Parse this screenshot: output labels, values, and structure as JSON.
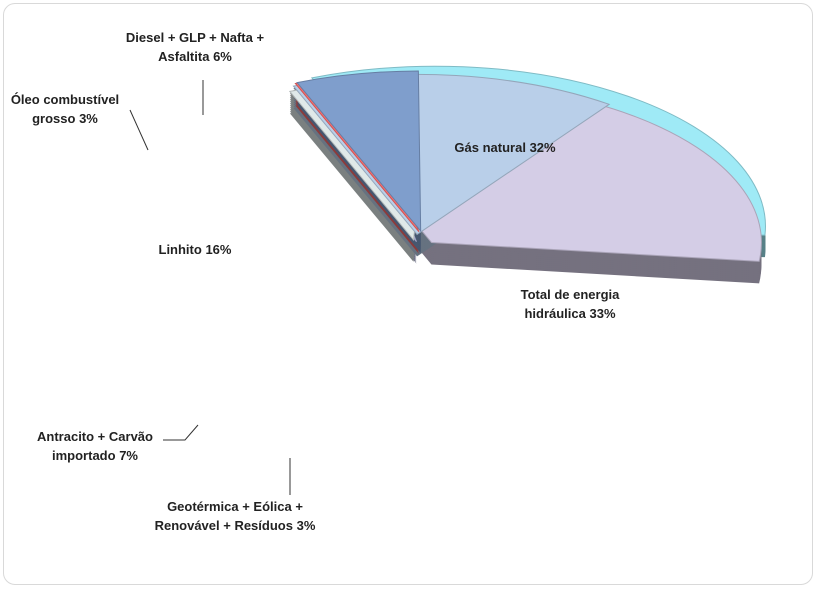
{
  "chart_data": {
    "type": "pie",
    "categories": [
      "Gás natural",
      "Total de energia hidráulica",
      "Geotérmica + Eólica + Renovável + Resíduos",
      "Antracito + Carvão importado",
      "Linhito",
      "Óleo combustível grosso",
      "Diesel + GLP + Nafta + Asfaltita"
    ],
    "values": [
      32,
      33,
      3,
      7,
      16,
      3,
      6
    ],
    "value_labels": [
      "32%",
      "33%",
      "3%",
      "7%",
      "16%",
      "3%",
      "6%"
    ],
    "colors": [
      "#9feaf6",
      "#d4cde6",
      "#c9cdf5",
      "#e0e9e9",
      "#b9cfe9",
      "#ff6b6b",
      "#7f9ecc"
    ]
  }
}
